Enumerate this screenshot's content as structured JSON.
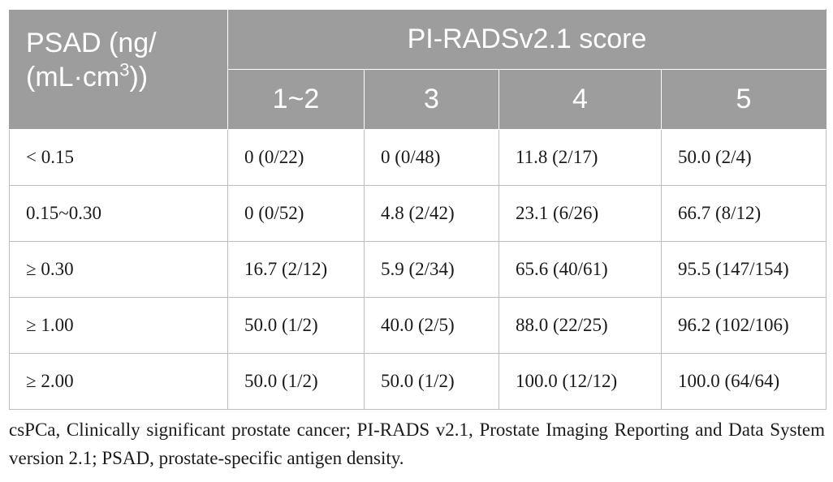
{
  "table": {
    "row_header_line1": "PSAD (ng/",
    "row_header_line2_prefix": "(mL·cm",
    "row_header_sup": "3",
    "row_header_line2_suffix": "))",
    "group_header": "PI-RADSv2.1 score",
    "score_columns": [
      "1~2",
      "3",
      "4",
      "5"
    ],
    "rows": [
      {
        "psad": "< 0.15",
        "cells": [
          "0 (0/22)",
          "0 (0/48)",
          "11.8 (2/17)",
          "50.0 (2/4)"
        ]
      },
      {
        "psad": "0.15~0.30",
        "cells": [
          "0 (0/52)",
          "4.8 (2/42)",
          "23.1 (6/26)",
          "66.7 (8/12)"
        ]
      },
      {
        "psad": "≥ 0.30",
        "cells": [
          "16.7 (2/12)",
          "5.9 (2/34)",
          "65.6 (40/61)",
          "95.5 (147/154)"
        ]
      },
      {
        "psad": "≥ 1.00",
        "cells": [
          "50.0 (1/2)",
          "40.0 (2/5)",
          "88.0 (22/25)",
          "96.2 (102/106)"
        ]
      },
      {
        "psad": "≥ 2.00",
        "cells": [
          "50.0 (1/2)",
          "50.0 (1/2)",
          "100.0 (12/12)",
          "100.0 (64/64)"
        ]
      }
    ]
  },
  "footnote": "csPCa, Clinically significant prostate cancer; PI-RADS v2.1, Prostate Imaging Reporting and Data System version 2.1; PSAD, prostate-specific antigen density.",
  "colors": {
    "header_bg": "#9d9d9d",
    "header_text": "#ffffff",
    "grid": "#bdbdbd",
    "body_text": "#1a1a1a"
  }
}
